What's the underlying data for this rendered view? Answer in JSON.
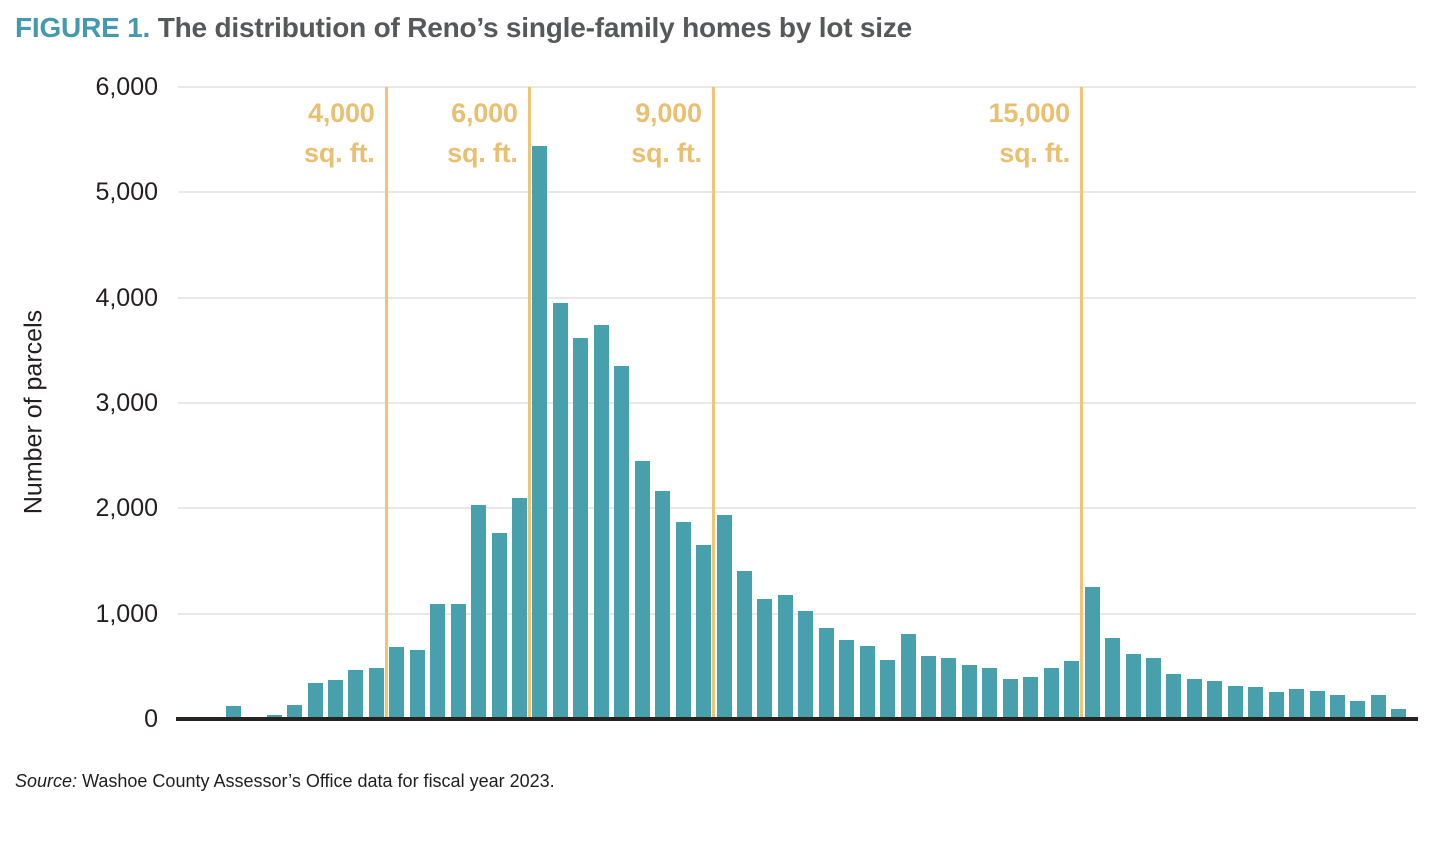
{
  "header": {
    "prefix": "FIGURE 1.",
    "title": "The distribution of Reno’s single-family homes by lot size"
  },
  "source": {
    "prefix": "Source:",
    "text": "Washoe County Assessor’s Office data for fiscal year 2023."
  },
  "chart_data": {
    "type": "bar",
    "title": "FIGURE 1. The distribution of Reno’s single-family homes by lot size",
    "xlabel": "",
    "ylabel": "Number of parcels",
    "ylim": [
      0,
      6000
    ],
    "grid": true,
    "x_tick_labels": "none",
    "y_ticks": [
      "0",
      "1,000",
      "2,000",
      "3,000",
      "4,000",
      "5,000",
      "6,000"
    ],
    "values": [
      110,
      0,
      25,
      120,
      330,
      360,
      460,
      480,
      675,
      645,
      1090,
      1090,
      2030,
      1760,
      2100,
      5450,
      3950,
      3620,
      3740,
      3350,
      2450,
      2160,
      1870,
      1650,
      1930,
      1400,
      1130,
      1170,
      1020,
      860,
      740,
      690,
      550,
      800,
      590,
      575,
      505,
      480,
      370,
      395,
      475,
      540,
      1250,
      760,
      605,
      575,
      415,
      370,
      350,
      305,
      300,
      245,
      280,
      255,
      215,
      165,
      220,
      90
    ],
    "reference_lines": [
      {
        "value": "4,000",
        "unit": "sq. ft.",
        "after_bar": 8
      },
      {
        "value": "6,000",
        "unit": "sq. ft.",
        "after_bar": 15
      },
      {
        "value": "9,000",
        "unit": "sq. ft.",
        "after_bar": 24
      },
      {
        "value": "15,000",
        "unit": "sq. ft.",
        "after_bar": 42
      }
    ],
    "colors": {
      "bar": "#47a0ac",
      "reference_line": "#f0c477",
      "reference_label": "#e9bf70",
      "title_prefix": "#4599ae",
      "title_text": "#57585a",
      "gridline": "#e8e8e8",
      "axis_line": "#272321"
    }
  }
}
